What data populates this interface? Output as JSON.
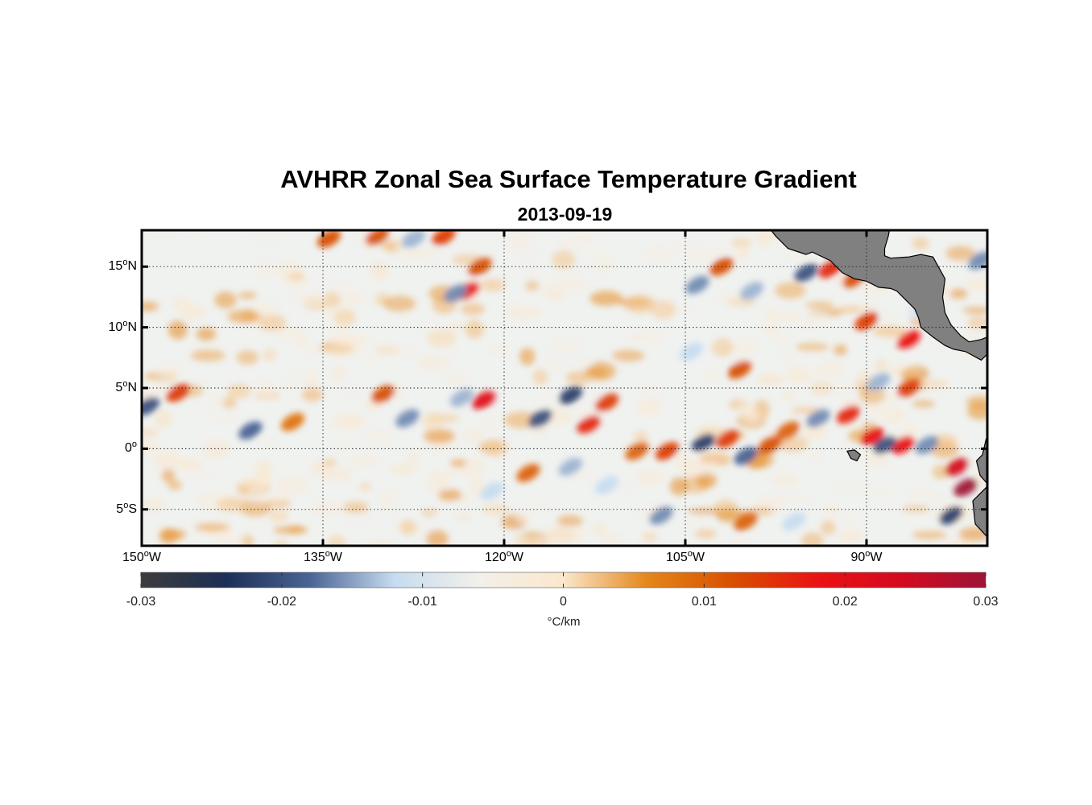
{
  "title": "AVHRR Zonal Sea Surface Temperature Gradient",
  "date": "2013-09-19",
  "colorbar": {
    "unit": "°C/km",
    "ticks": [
      "-0.03",
      "-0.02",
      "-0.01",
      "0",
      "0.01",
      "0.02",
      "0.03"
    ],
    "range": [
      -0.03,
      0.03
    ],
    "colors": [
      "#3c3c3c",
      "#1c2f55",
      "#4a6495",
      "#c6dcf0",
      "#f2f0ea",
      "#fbe7cc",
      "#e4861a",
      "#d85000",
      "#ea1212",
      "#d40a20",
      "#9e1437"
    ]
  },
  "map": {
    "lon_range": [
      -150,
      -80
    ],
    "lat_range": [
      -8,
      18
    ],
    "lat_ticks": [
      {
        "deg": "15",
        "hemi": "N"
      },
      {
        "deg": "10",
        "hemi": "N"
      },
      {
        "deg": "5",
        "hemi": "N"
      },
      {
        "deg": "0",
        "hemi": ""
      },
      {
        "deg": "5",
        "hemi": "S"
      }
    ],
    "lon_ticks": [
      {
        "deg": "150",
        "hemi": "W"
      },
      {
        "deg": "135",
        "hemi": "W"
      },
      {
        "deg": "120",
        "hemi": "W"
      },
      {
        "deg": "105",
        "hemi": "W"
      },
      {
        "deg": "90",
        "hemi": "W"
      }
    ],
    "land_color": "#808080",
    "features": [
      {
        "lon": -147,
        "lat": 4.6,
        "v": 0.014
      },
      {
        "lon": -149.5,
        "lat": 3.5,
        "v": -0.02
      },
      {
        "lon": -141,
        "lat": 1.5,
        "v": -0.018
      },
      {
        "lon": -137.5,
        "lat": 2.2,
        "v": 0.008
      },
      {
        "lon": -128,
        "lat": 2.5,
        "v": -0.016
      },
      {
        "lon": -130,
        "lat": 4.5,
        "v": 0.012
      },
      {
        "lon": -121.7,
        "lat": 4.0,
        "v": 0.02
      },
      {
        "lon": -123.5,
        "lat": 4.2,
        "v": -0.014
      },
      {
        "lon": -117,
        "lat": 2.5,
        "v": -0.02
      },
      {
        "lon": -114.5,
        "lat": 4.4,
        "v": -0.022
      },
      {
        "lon": -111.5,
        "lat": 3.8,
        "v": 0.014
      },
      {
        "lon": -113,
        "lat": 2.0,
        "v": 0.016
      },
      {
        "lon": -114.5,
        "lat": -1.5,
        "v": -0.014
      },
      {
        "lon": -111.5,
        "lat": -3,
        "v": -0.012
      },
      {
        "lon": -106.5,
        "lat": -0.2,
        "v": 0.014
      },
      {
        "lon": -109,
        "lat": -0.2,
        "v": 0.01
      },
      {
        "lon": -101.5,
        "lat": 0.8,
        "v": 0.014
      },
      {
        "lon": -103.5,
        "lat": 0.5,
        "v": -0.022
      },
      {
        "lon": -100,
        "lat": -0.6,
        "v": -0.018
      },
      {
        "lon": -98,
        "lat": 0.3,
        "v": 0.012
      },
      {
        "lon": -94,
        "lat": 2.5,
        "v": -0.016
      },
      {
        "lon": -91.5,
        "lat": 2.8,
        "v": 0.016
      },
      {
        "lon": -89.5,
        "lat": 1.0,
        "v": 0.018
      },
      {
        "lon": -87,
        "lat": 0.3,
        "v": 0.018
      },
      {
        "lon": -88.5,
        "lat": 0.3,
        "v": -0.02
      },
      {
        "lon": -85,
        "lat": 0.3,
        "v": -0.016
      },
      {
        "lon": -82.5,
        "lat": -1.5,
        "v": 0.024
      },
      {
        "lon": -81.8,
        "lat": -3.2,
        "v": 0.03
      },
      {
        "lon": -83,
        "lat": -5.5,
        "v": -0.022
      },
      {
        "lon": -86.5,
        "lat": 5.0,
        "v": 0.014
      },
      {
        "lon": -89,
        "lat": 5.5,
        "v": -0.014
      },
      {
        "lon": -86.5,
        "lat": 9.0,
        "v": 0.018
      },
      {
        "lon": -90,
        "lat": 10.5,
        "v": 0.014
      },
      {
        "lon": -95,
        "lat": 14.5,
        "v": -0.02
      },
      {
        "lon": -93,
        "lat": 14.8,
        "v": 0.016
      },
      {
        "lon": -91,
        "lat": 14.0,
        "v": 0.012
      },
      {
        "lon": -99.5,
        "lat": 13.0,
        "v": -0.014
      },
      {
        "lon": -102,
        "lat": 15.0,
        "v": 0.012
      },
      {
        "lon": -104,
        "lat": 13.5,
        "v": -0.016
      },
      {
        "lon": -100.5,
        "lat": 6.5,
        "v": 0.012
      },
      {
        "lon": -104.5,
        "lat": 8.0,
        "v": -0.012
      },
      {
        "lon": -123,
        "lat": 13.0,
        "v": 0.018
      },
      {
        "lon": -124,
        "lat": 12.8,
        "v": -0.016
      },
      {
        "lon": -122,
        "lat": 15.0,
        "v": 0.012
      },
      {
        "lon": -125,
        "lat": 17.5,
        "v": 0.014
      },
      {
        "lon": -130.5,
        "lat": 17.5,
        "v": 0.012
      },
      {
        "lon": -134.5,
        "lat": 17.3,
        "v": 0.012
      },
      {
        "lon": -127.5,
        "lat": 17.3,
        "v": -0.014
      },
      {
        "lon": -121,
        "lat": -3.5,
        "v": -0.012
      },
      {
        "lon": -118,
        "lat": -2.0,
        "v": 0.01
      },
      {
        "lon": -107,
        "lat": -5.5,
        "v": -0.016
      },
      {
        "lon": -80.6,
        "lat": 15.5,
        "v": -0.016
      },
      {
        "lon": -96,
        "lat": -6.0,
        "v": -0.012
      },
      {
        "lon": -100,
        "lat": -6.0,
        "v": 0.01
      },
      {
        "lon": -85.5,
        "lat": 11.5,
        "v": -0.01
      },
      {
        "lon": -96.5,
        "lat": 1.5,
        "v": 0.01
      }
    ]
  }
}
